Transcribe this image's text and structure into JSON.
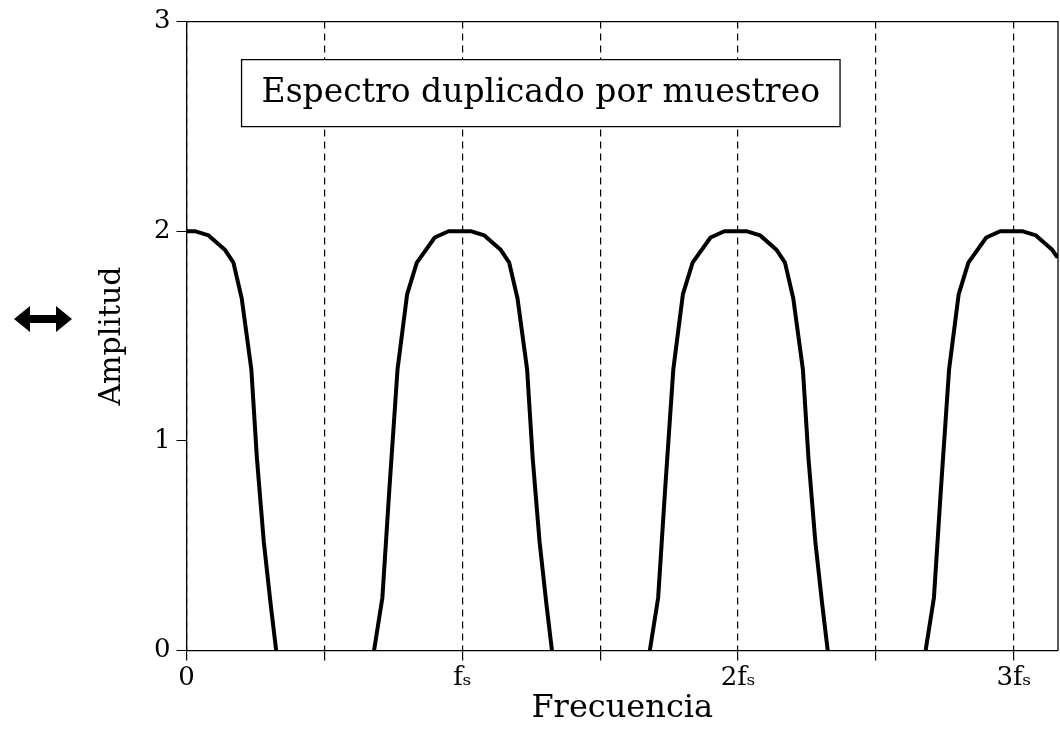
{
  "chart_data": {
    "type": "line",
    "xlabel": "Frecuencia",
    "ylabel": "Amplitud",
    "annotations": [
      "Espectro duplicado por muestreo"
    ],
    "x": [
      0,
      0.03,
      0.08,
      0.14,
      0.17,
      0.2,
      0.235,
      0.255,
      0.28,
      0.305,
      0.325,
      0.5,
      0.68,
      0.71,
      0.735,
      0.765,
      0.8,
      0.835,
      0.9,
      0.95,
      1.03,
      1.08,
      1.14,
      1.17,
      1.2,
      1.235,
      1.255,
      1.28,
      1.305,
      1.325,
      1.5,
      1.68,
      1.71,
      1.735,
      1.765,
      1.8,
      1.835,
      1.9,
      1.95,
      2.03,
      2.08,
      2.14,
      2.17,
      2.2,
      2.235,
      2.255,
      2.28,
      2.305,
      2.325,
      2.5,
      2.68,
      2.71,
      2.735,
      2.765,
      2.8,
      2.835,
      2.9,
      2.95,
      3.03,
      3.08,
      3.14,
      3.155
    ],
    "series": [
      {
        "color": "#000000",
        "values": [
          2.0,
          2.0,
          1.98,
          1.91,
          1.85,
          1.68,
          1.34,
          0.92,
          0.52,
          0.22,
          0,
          null,
          0,
          0.25,
          0.76,
          1.34,
          1.7,
          1.85,
          1.97,
          2.0,
          2.0,
          1.98,
          1.91,
          1.85,
          1.68,
          1.34,
          0.92,
          0.52,
          0.22,
          0,
          null,
          0,
          0.25,
          0.76,
          1.34,
          1.7,
          1.85,
          1.97,
          2.0,
          2.0,
          1.98,
          1.91,
          1.85,
          1.68,
          1.34,
          0.92,
          0.52,
          0.22,
          0,
          null,
          0,
          0.25,
          0.76,
          1.34,
          1.7,
          1.85,
          1.97,
          2.0,
          2.0,
          1.98,
          1.91,
          1.88
        ]
      }
    ],
    "xlim": [
      0,
      3.16
    ],
    "ylim": [
      0,
      3
    ],
    "xticks": [
      0,
      {
        "value": 0.5,
        "label": null
      },
      {
        "value": 1,
        "label": "fₛ"
      },
      {
        "value": 1.5,
        "label": null
      },
      {
        "value": 2,
        "label": "2fₛ"
      },
      {
        "value": 2.5,
        "label": null
      },
      {
        "value": 3,
        "label": "3fₛ"
      }
    ],
    "yticks": [
      0,
      1,
      2,
      3
    ],
    "grid": "x",
    "legend": false,
    "marker": "none",
    "line_style": "solid"
  }
}
